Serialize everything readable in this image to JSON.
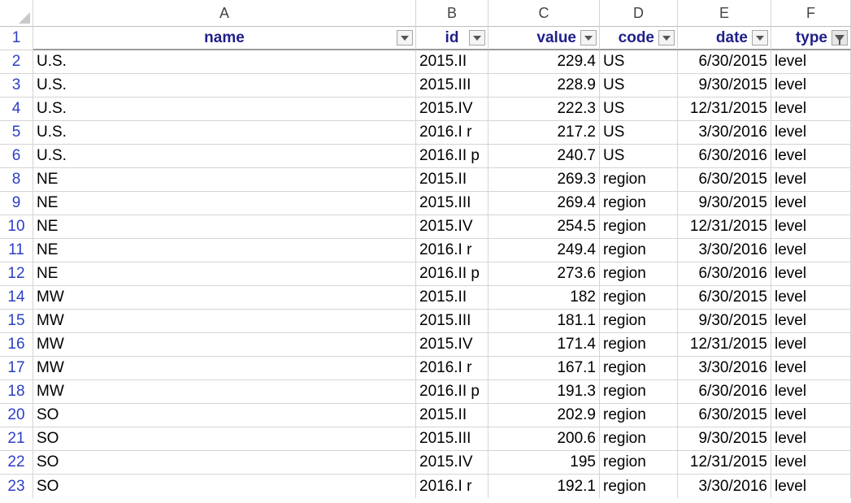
{
  "column_letters": [
    "A",
    "B",
    "C",
    "D",
    "E",
    "F"
  ],
  "headers": [
    "name",
    "id",
    "value",
    "code",
    "date",
    "type"
  ],
  "rows": [
    {
      "row": "2",
      "name": "U.S.",
      "id": "2015.II",
      "value": "229.4",
      "code": "US",
      "date": "6/30/2015",
      "type": "level"
    },
    {
      "row": "3",
      "name": "U.S.",
      "id": "2015.III",
      "value": "228.9",
      "code": "US",
      "date": "9/30/2015",
      "type": "level"
    },
    {
      "row": "4",
      "name": "U.S.",
      "id": "2015.IV",
      "value": "222.3",
      "code": "US",
      "date": "12/31/2015",
      "type": "level"
    },
    {
      "row": "5",
      "name": "U.S.",
      "id": "2016.I r",
      "value": "217.2",
      "code": "US",
      "date": "3/30/2016",
      "type": "level"
    },
    {
      "row": "6",
      "name": "U.S.",
      "id": "2016.II p",
      "value": "240.7",
      "code": "US",
      "date": "6/30/2016",
      "type": "level"
    },
    {
      "row": "8",
      "name": "NE",
      "id": "2015.II",
      "value": "269.3",
      "code": "region",
      "date": "6/30/2015",
      "type": "level"
    },
    {
      "row": "9",
      "name": "NE",
      "id": "2015.III",
      "value": "269.4",
      "code": "region",
      "date": "9/30/2015",
      "type": "level"
    },
    {
      "row": "10",
      "name": "NE",
      "id": "2015.IV",
      "value": "254.5",
      "code": "region",
      "date": "12/31/2015",
      "type": "level"
    },
    {
      "row": "11",
      "name": "NE",
      "id": "2016.I r",
      "value": "249.4",
      "code": "region",
      "date": "3/30/2016",
      "type": "level"
    },
    {
      "row": "12",
      "name": "NE",
      "id": "2016.II p",
      "value": "273.6",
      "code": "region",
      "date": "6/30/2016",
      "type": "level"
    },
    {
      "row": "14",
      "name": "MW",
      "id": "2015.II",
      "value": "182",
      "code": "region",
      "date": "6/30/2015",
      "type": "level"
    },
    {
      "row": "15",
      "name": "MW",
      "id": "2015.III",
      "value": "181.1",
      "code": "region",
      "date": "9/30/2015",
      "type": "level"
    },
    {
      "row": "16",
      "name": "MW",
      "id": "2015.IV",
      "value": "171.4",
      "code": "region",
      "date": "12/31/2015",
      "type": "level"
    },
    {
      "row": "17",
      "name": "MW",
      "id": "2016.I r",
      "value": "167.1",
      "code": "region",
      "date": "3/30/2016",
      "type": "level"
    },
    {
      "row": "18",
      "name": "MW",
      "id": "2016.II p",
      "value": "191.3",
      "code": "region",
      "date": "6/30/2016",
      "type": "level"
    },
    {
      "row": "20",
      "name": "SO",
      "id": "2015.II",
      "value": "202.9",
      "code": "region",
      "date": "6/30/2015",
      "type": "level"
    },
    {
      "row": "21",
      "name": "SO",
      "id": "2015.III",
      "value": "200.6",
      "code": "region",
      "date": "9/30/2015",
      "type": "level"
    },
    {
      "row": "22",
      "name": "SO",
      "id": "2015.IV",
      "value": "195",
      "code": "region",
      "date": "12/31/2015",
      "type": "level"
    },
    {
      "row": "23",
      "name": "SO",
      "id": "2016.I r",
      "value": "192.1",
      "code": "region",
      "date": "3/30/2016",
      "type": "level"
    }
  ],
  "filter_active_column": "type",
  "icons": {
    "filter_dropdown": "chevron-down-icon",
    "filter_active": "filter-funnel-icon",
    "select_all": "select-all-triangle-icon"
  },
  "colors": {
    "header_text": "#1f1f8a",
    "row_number_text": "#2b3fc4",
    "gridline": "#d4d4d4"
  }
}
